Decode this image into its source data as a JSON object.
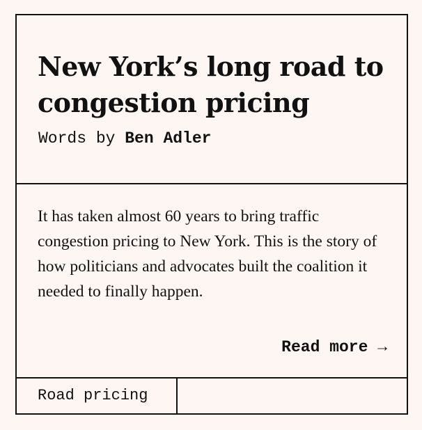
{
  "article": {
    "title": "New York’s long road to congestion pricing",
    "byline_prefix": "Words by ",
    "author": "Ben Adler",
    "excerpt": "It has taken almost 60 years to bring traffic congestion pricing to New York. This is the story of how politicians and advocates built the coalition it needed to finally happen.",
    "read_more_label": "Read more →",
    "tag": "Road pricing"
  },
  "colors": {
    "background": "#fdf6f2",
    "ink": "#111111"
  }
}
